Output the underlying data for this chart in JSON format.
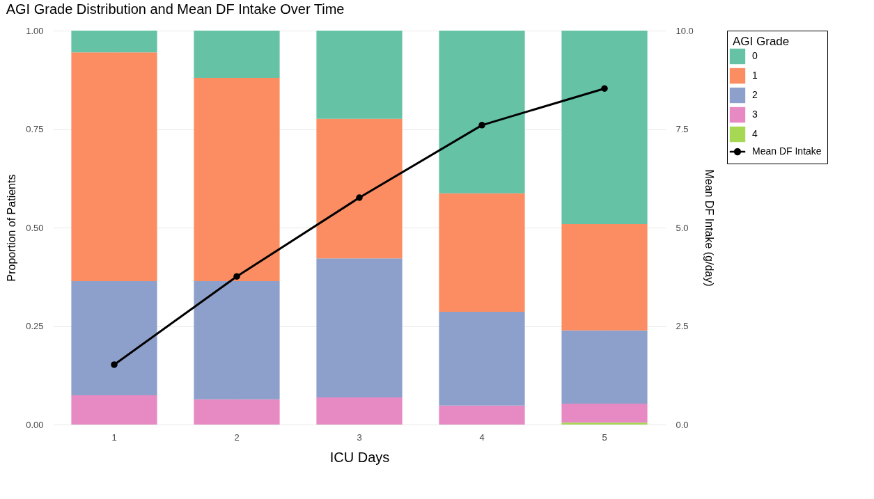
{
  "chart_data": {
    "type": "bar",
    "title": "AGI Grade Distribution and Mean DF Intake Over Time",
    "xlabel": "ICU Days",
    "ylabel": "Proportion of Patients",
    "y2label": "Mean DF Intake (g/day)",
    "legend_title": "AGI Grade",
    "categories": [
      "1",
      "2",
      "3",
      "4",
      "5"
    ],
    "stacked": true,
    "series": [
      {
        "name": "4",
        "color": "#a6d854",
        "values": [
          0,
          0,
          0,
          0,
          0.005
        ]
      },
      {
        "name": "3",
        "color": "#e78ac3",
        "values": [
          0.074,
          0.064,
          0.069,
          0.048,
          0.048
        ]
      },
      {
        "name": "2",
        "color": "#8da0cb",
        "values": [
          0.29,
          0.3,
          0.353,
          0.238,
          0.186
        ]
      },
      {
        "name": "1",
        "color": "#fc8d62",
        "values": [
          0.581,
          0.516,
          0.354,
          0.301,
          0.27
        ]
      },
      {
        "name": "0",
        "color": "#66c2a5",
        "values": [
          0.055,
          0.12,
          0.224,
          0.413,
          0.491
        ]
      },
      {
        "name": "Mean DF Intake",
        "type": "line",
        "axis": "y2",
        "color": "#000000",
        "marker": "circle",
        "values": [
          1.52,
          3.76,
          5.76,
          7.6,
          8.53
        ]
      }
    ],
    "ylim": [
      0,
      1
    ],
    "yticks": [
      {
        "value": 0,
        "label": "0.00"
      },
      {
        "value": 0.25,
        "label": "0.25"
      },
      {
        "value": 0.5,
        "label": "0.50"
      },
      {
        "value": 0.75,
        "label": "0.75"
      },
      {
        "value": 1,
        "label": "1.00"
      }
    ],
    "y2lim": [
      0,
      10
    ],
    "y2ticks": [
      {
        "value": 0,
        "label": "0.0"
      },
      {
        "value": 2.5,
        "label": "2.5"
      },
      {
        "value": 5,
        "label": "5.0"
      },
      {
        "value": 7.5,
        "label": "7.5"
      },
      {
        "value": 10,
        "label": "10.0"
      }
    ],
    "grid": true,
    "legend": "right"
  }
}
